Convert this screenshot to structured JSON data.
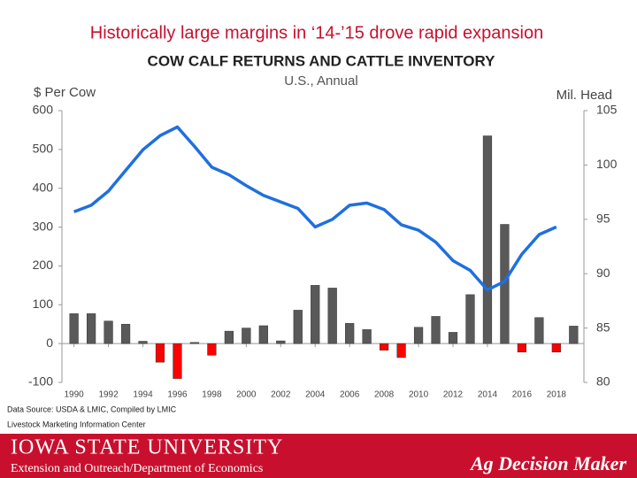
{
  "header": {
    "title": "Historically large margins in ‘14-’15 drove rapid expansion"
  },
  "chart_data": {
    "type": "combo",
    "title": "COW CALF RETURNS AND CATTLE INVENTORY",
    "subtitle": "U.S., Annual",
    "y_label": "$ Per Cow",
    "y2_label": "Mil. Head",
    "x": [
      1990,
      1991,
      1992,
      1993,
      1994,
      1995,
      1996,
      1997,
      1998,
      1999,
      2000,
      2001,
      2002,
      2003,
      2004,
      2005,
      2006,
      2007,
      2008,
      2009,
      2010,
      2011,
      2012,
      2013,
      2014,
      2015,
      2016,
      2017,
      2018,
      2019
    ],
    "xlim": [
      1989.3,
      2019.6
    ],
    "xticks": [
      1990,
      1992,
      1994,
      1996,
      1998,
      2000,
      2002,
      2004,
      2006,
      2008,
      2010,
      2012,
      2014,
      2016,
      2018
    ],
    "ylim": [
      -100,
      600
    ],
    "yticks": [
      -100,
      0,
      100,
      200,
      300,
      400,
      500,
      600
    ],
    "y2lim": [
      80,
      105
    ],
    "y2ticks": [
      80,
      85,
      90,
      95,
      100,
      105
    ],
    "series": [
      {
        "type": "bar",
        "color": "#595959",
        "negative_color": "#ff0000",
        "values": [
          77,
          77,
          58,
          50,
          6,
          -48,
          -90,
          3,
          -30,
          32,
          40,
          46,
          7,
          86,
          150,
          143,
          52,
          36,
          -17,
          -36,
          42,
          70,
          29,
          126,
          535,
          307,
          -22,
          67,
          -22,
          45
        ]
      },
      {
        "type": "line",
        "color": "#1f6fe0",
        "axis": "y2",
        "values": [
          95.7,
          96.3,
          97.6,
          99.5,
          101.4,
          102.7,
          103.5,
          101.7,
          99.8,
          99.1,
          98.1,
          97.2,
          96.6,
          96.0,
          94.3,
          95.0,
          96.3,
          96.5,
          95.9,
          94.5,
          94.0,
          92.9,
          91.2,
          90.3,
          88.5,
          89.3,
          91.8,
          93.6,
          94.3,
          null
        ]
      }
    ]
  },
  "footer": {
    "source": "Data Source:  USDA & LMIC, Compiled by LMIC",
    "center": "Livestock Marketing Information Center",
    "university": "IOWA STATE UNIVERSITY",
    "department": "Extension and Outreach/Department of Economics",
    "brand": "Ag Decision Maker"
  }
}
